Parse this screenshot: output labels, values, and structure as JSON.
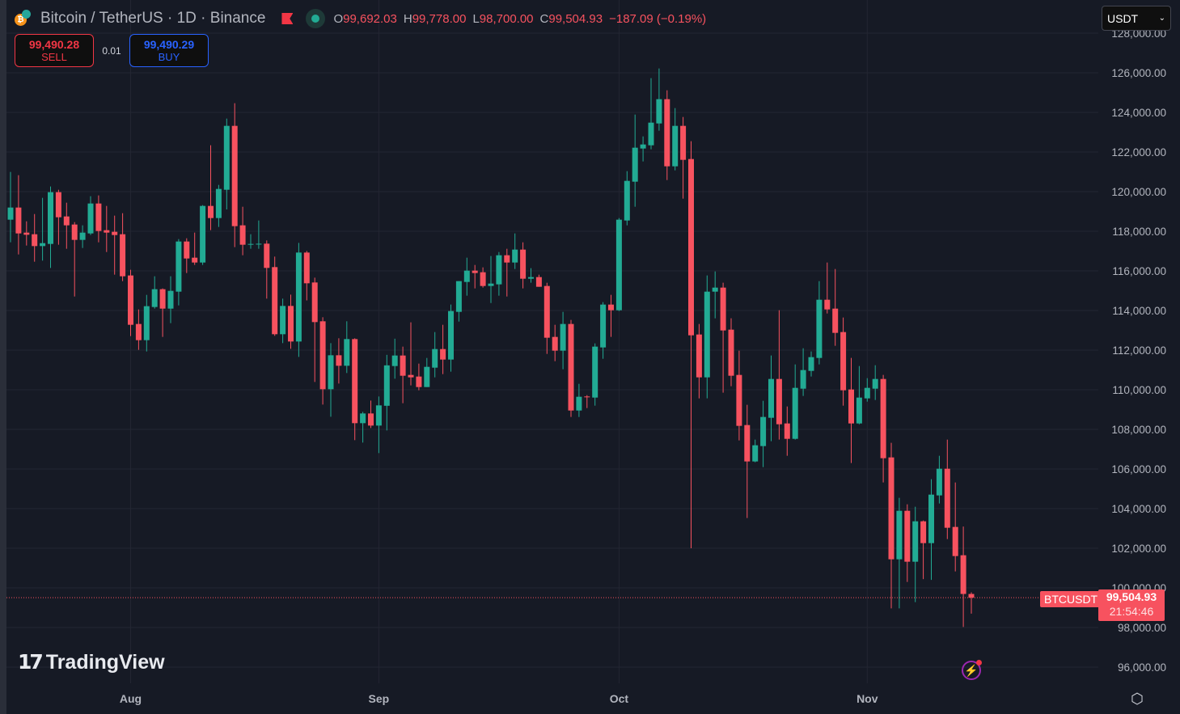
{
  "header": {
    "title": "Bitcoin / TetherUS · 1D · Binance",
    "ohlc": {
      "o_label": "O",
      "o": "99,692.03",
      "h_label": "H",
      "h": "99,778.00",
      "l_label": "L",
      "l": "98,700.00",
      "c_label": "C",
      "c": "99,504.93",
      "change": "−187.09 (−0.19%)"
    },
    "market_status_color": "#22ab94"
  },
  "trade": {
    "sell_price": "99,490.28",
    "sell_label": "SELL",
    "spread": "0.01",
    "buy_price": "99,490.29",
    "buy_label": "BUY"
  },
  "currency_select": {
    "value": "USDT",
    "icon": "chevron-down-icon"
  },
  "watermark": {
    "text": "TradingView"
  },
  "last_price": {
    "symbol": "BTCUSDT",
    "price": "99,504.93",
    "countdown": "21:54:46",
    "value": 99504.93
  },
  "colors": {
    "up": "#22ab94",
    "down": "#f7525f",
    "background": "#161a25",
    "grid": "#232632"
  },
  "chart_data": {
    "type": "candlestick",
    "interval": "1D",
    "title": "",
    "xlabel": "",
    "ylabel": "",
    "ylim": [
      96000,
      128000
    ],
    "grid": true,
    "price_ticks": [
      "128,000.00",
      "126,000.00",
      "124,000.00",
      "122,000.00",
      "120,000.00",
      "118,000.00",
      "116,000.00",
      "114,000.00",
      "112,000.00",
      "110,000.00",
      "108,000.00",
      "106,000.00",
      "104,000.00",
      "102,000.00",
      "100,000.00",
      "98,000.00",
      "96,000.00"
    ],
    "time_ticks": [
      {
        "label": "Aug",
        "date": "Aug 1"
      },
      {
        "label": "Sep",
        "date": "Sep 1"
      },
      {
        "label": "Oct",
        "date": "Oct 1"
      },
      {
        "label": "Nov",
        "date": "Nov 1"
      }
    ],
    "columns": [
      "date",
      "open",
      "high",
      "low",
      "close"
    ],
    "candles": [
      [
        "Jul 17",
        118585,
        120993,
        117442,
        119197
      ],
      [
        "Jul 18",
        119197,
        120830,
        116830,
        117891
      ],
      [
        "Jul 19",
        117932,
        118503,
        117279,
        117823
      ],
      [
        "Jul 20",
        117850,
        118870,
        116463,
        117252
      ],
      [
        "Jul 21",
        117252,
        119687,
        116517,
        117401
      ],
      [
        "Jul 22",
        117361,
        120258,
        116150,
        119973
      ],
      [
        "Jul 23",
        119973,
        120095,
        117320,
        118707
      ],
      [
        "Jul 24",
        118748,
        119442,
        117116,
        118300
      ],
      [
        "Jul 25",
        118340,
        118463,
        114707,
        117565
      ],
      [
        "Jul 26",
        117565,
        118300,
        117156,
        117932
      ],
      [
        "Jul 27",
        117891,
        119769,
        117810,
        119401
      ],
      [
        "Jul 28",
        119401,
        119810,
        117442,
        118014
      ],
      [
        "Jul 29",
        118054,
        119279,
        116952,
        117932
      ],
      [
        "Jul 30",
        117973,
        118789,
        115810,
        117810
      ],
      [
        "Jul 31",
        117850,
        118912,
        115483,
        115728
      ],
      [
        "Aug 1",
        115769,
        116054,
        112707,
        113279
      ],
      [
        "Aug 2",
        113320,
        114054,
        112014,
        112503
      ],
      [
        "Aug 3",
        112503,
        114789,
        111932,
        114218
      ],
      [
        "Aug 4",
        114177,
        115728,
        114095,
        115075
      ],
      [
        "Aug 5",
        115075,
        115116,
        112667,
        114095
      ],
      [
        "Aug 6",
        114095,
        115728,
        113360,
        114993
      ],
      [
        "Aug 7",
        114952,
        117605,
        114258,
        117483
      ],
      [
        "Aug 8",
        117483,
        117646,
        115891,
        116626
      ],
      [
        "Aug 9",
        116667,
        117932,
        116300,
        116422
      ],
      [
        "Aug 10",
        116422,
        119320,
        116300,
        119279
      ],
      [
        "Aug 11",
        119279,
        122340,
        118054,
        118667
      ],
      [
        "Aug 12",
        118667,
        120340,
        118218,
        120136
      ],
      [
        "Aug 13",
        120095,
        123687,
        119102,
        123320
      ],
      [
        "Aug 14",
        123320,
        124463,
        117197,
        118258
      ],
      [
        "Aug 15",
        118300,
        119238,
        116789,
        117320
      ],
      [
        "Aug 16",
        117340,
        117850,
        117116,
        117360
      ],
      [
        "Aug 17",
        117350,
        118544,
        117116,
        117370
      ],
      [
        "Aug 18",
        117374,
        117538,
        114599,
        116150
      ],
      [
        "Aug 19",
        116191,
        116721,
        112721,
        112803
      ],
      [
        "Aug 20",
        112803,
        114599,
        112354,
        114231
      ],
      [
        "Aug 21",
        114231,
        114803,
        112068,
        112435
      ],
      [
        "Aug 22",
        112435,
        117415,
        111660,
        116925
      ],
      [
        "Aug 23",
        116925,
        117007,
        114510,
        115374
      ],
      [
        "Aug 24",
        115415,
        115660,
        110395,
        113415
      ],
      [
        "Aug 25",
        113456,
        113660,
        109252,
        110027
      ],
      [
        "Aug 26",
        110027,
        112354,
        108640,
        111741
      ],
      [
        "Aug 27",
        111741,
        112599,
        110313,
        111211
      ],
      [
        "Aug 28",
        111211,
        113456,
        110844,
        112558
      ],
      [
        "Aug 29",
        112558,
        112599,
        107456,
        108313
      ],
      [
        "Aug 30",
        108313,
        108885,
        107333,
        108803
      ],
      [
        "Aug 31",
        108803,
        109456,
        108068,
        108191
      ],
      [
        "Sep 1",
        108191,
        109660,
        106803,
        109211
      ],
      [
        "Sep 2",
        109191,
        111762,
        107946,
        111231
      ],
      [
        "Sep 3",
        111197,
        112578,
        110558,
        111728
      ],
      [
        "Sep 4",
        111728,
        112177,
        109320,
        110707
      ],
      [
        "Sep 5",
        110748,
        113401,
        110218,
        110626
      ],
      [
        "Sep 6",
        110667,
        111320,
        109973,
        110136
      ],
      [
        "Sep 7",
        110136,
        111605,
        110136,
        111156
      ],
      [
        "Sep 8",
        111115,
        112912,
        110626,
        112054
      ],
      [
        "Sep 9",
        112054,
        113279,
        110789,
        111524
      ],
      [
        "Sep 10",
        111524,
        114299,
        110912,
        113973
      ],
      [
        "Sep 11",
        113932,
        115483,
        113442,
        115483
      ],
      [
        "Sep 12",
        115442,
        116667,
        114748,
        116014
      ],
      [
        "Sep 13",
        116014,
        116299,
        115116,
        115891
      ],
      [
        "Sep 14",
        115932,
        116177,
        115156,
        115238
      ],
      [
        "Sep 15",
        115238,
        116748,
        114380,
        115360
      ],
      [
        "Sep 16",
        115320,
        116952,
        114748,
        116789
      ],
      [
        "Sep 17",
        116789,
        117116,
        114707,
        116422
      ],
      [
        "Sep 18",
        116422,
        117891,
        116095,
        117075
      ],
      [
        "Sep 19",
        117075,
        117442,
        115116,
        115605
      ],
      [
        "Sep 20",
        115605,
        116136,
        115401,
        115687
      ],
      [
        "Sep 21",
        115687,
        115809,
        115197,
        115197
      ],
      [
        "Sep 22",
        115238,
        115401,
        111809,
        112626
      ],
      [
        "Sep 23",
        112667,
        113279,
        111442,
        111973
      ],
      [
        "Sep 24",
        111973,
        113932,
        111034,
        113320
      ],
      [
        "Sep 25",
        113320,
        113524,
        108626,
        108952
      ],
      [
        "Sep 26",
        108952,
        110299,
        108626,
        109646
      ],
      [
        "Sep 27",
        109660,
        109728,
        109075,
        109640
      ],
      [
        "Sep 28",
        109605,
        112340,
        109197,
        112177
      ],
      [
        "Sep 29",
        112136,
        114422,
        111564,
        114299
      ],
      [
        "Sep 30",
        114299,
        114789,
        112667,
        114014
      ],
      [
        "Oct 1",
        114014,
        118667,
        113973,
        118585
      ],
      [
        "Oct 2",
        118544,
        121034,
        118299,
        120544
      ],
      [
        "Oct 3",
        120503,
        123891,
        119238,
        122218
      ],
      [
        "Oct 4",
        122177,
        122789,
        121524,
        122381
      ],
      [
        "Oct 5",
        122340,
        125728,
        122136,
        123483
      ],
      [
        "Oct 6",
        123442,
        126218,
        123075,
        124667
      ],
      [
        "Oct 7",
        124667,
        125116,
        120585,
        121279
      ],
      [
        "Oct 8",
        121279,
        124218,
        121075,
        123320
      ],
      [
        "Oct 9",
        123320,
        123769,
        119646,
        121605
      ],
      [
        "Oct 10",
        121646,
        122544,
        102000,
        112748
      ],
      [
        "Oct 11",
        112789,
        113320,
        109564,
        110626
      ],
      [
        "Oct 12",
        110626,
        115769,
        109564,
        114952
      ],
      [
        "Oct 13",
        114952,
        115973,
        113605,
        115156
      ],
      [
        "Oct 14",
        115156,
        115401,
        109850,
        112993
      ],
      [
        "Oct 15",
        113034,
        113605,
        110177,
        110707
      ],
      [
        "Oct 16",
        110748,
        111973,
        107442,
        108177
      ],
      [
        "Oct 17",
        108218,
        109238,
        103524,
        106381
      ],
      [
        "Oct 18",
        106381,
        107483,
        106340,
        107197
      ],
      [
        "Oct 19",
        107156,
        109442,
        106095,
        108626
      ],
      [
        "Oct 20",
        108585,
        111728,
        107401,
        110544
      ],
      [
        "Oct 21",
        110544,
        114014,
        107483,
        108258
      ],
      [
        "Oct 22",
        108299,
        109156,
        106667,
        107523
      ],
      [
        "Oct 23",
        107523,
        111279,
        107483,
        110095
      ],
      [
        "Oct 24",
        110054,
        112095,
        109687,
        110993
      ],
      [
        "Oct 25",
        110952,
        111932,
        110667,
        111646
      ],
      [
        "Oct 26",
        111605,
        115483,
        111279,
        114544
      ],
      [
        "Oct 27",
        114544,
        116422,
        113850,
        114054
      ],
      [
        "Oct 28",
        114095,
        116095,
        112218,
        112871
      ],
      [
        "Oct 29",
        112912,
        113646,
        109197,
        109973
      ],
      [
        "Oct 30",
        110014,
        111605,
        106299,
        108299
      ],
      [
        "Oct 31",
        108299,
        111197,
        108258,
        109605
      ],
      [
        "Nov 1",
        109564,
        110585,
        109401,
        110095
      ],
      [
        "Nov 2",
        110054,
        111238,
        109483,
        110544
      ],
      [
        "Nov 3",
        110544,
        110748,
        105320,
        106544
      ],
      [
        "Nov 4",
        106585,
        107320,
        98966,
        101442
      ],
      [
        "Nov 5",
        101442,
        104544,
        98966,
        103891
      ],
      [
        "Nov 6",
        103891,
        104218,
        100299,
        101320
      ],
      [
        "Nov 7",
        101320,
        104095,
        99279,
        103360
      ],
      [
        "Nov 8",
        103360,
        103401,
        100442,
        102258
      ],
      [
        "Nov 9",
        102258,
        105483,
        100401,
        104707
      ],
      [
        "Nov 10",
        104667,
        106667,
        104259,
        106014
      ],
      [
        "Nov 11",
        106014,
        107483,
        102463,
        103034
      ],
      [
        "Nov 12",
        103075,
        105320,
        100830,
        101605
      ],
      [
        "Nov 13",
        101646,
        103095,
        98027,
        99692.03
      ],
      [
        "Nov 14",
        99692.03,
        99778,
        98700,
        99504.93
      ]
    ]
  }
}
